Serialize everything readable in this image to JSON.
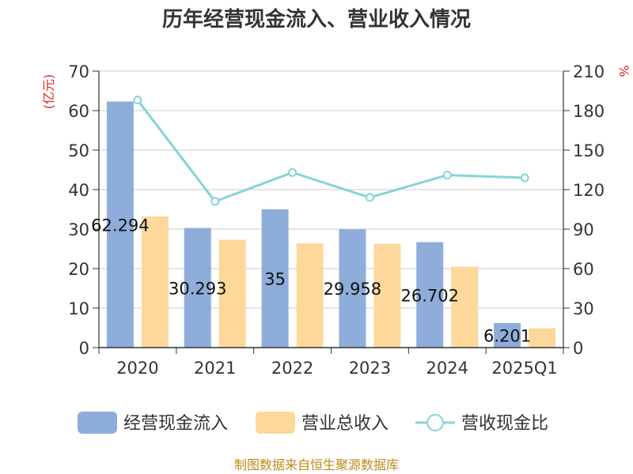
{
  "chart_data": {
    "type": "bar",
    "title": "历年经营现金流入、营业收入情况",
    "categories": [
      "2020",
      "2021",
      "2022",
      "2023",
      "2024",
      "2025Q1"
    ],
    "left_axis": {
      "unit": "(亿元)",
      "min": 0,
      "max": 70,
      "ticks": [
        0,
        10,
        20,
        30,
        40,
        50,
        60,
        70
      ]
    },
    "right_axis": {
      "unit": "%",
      "min": 0,
      "max": 210,
      "ticks": [
        0,
        30,
        60,
        90,
        120,
        150,
        180,
        210
      ]
    },
    "grid": true,
    "legend_position": "bottom",
    "series": [
      {
        "name": "经营现金流入",
        "kind": "bar",
        "axis": "left",
        "color": "#8eadda",
        "values": [
          62.29,
          30.29,
          35.0,
          29.96,
          26.7,
          6.2
        ],
        "labels": [
          "62.294",
          "30.293",
          "35",
          "29.958",
          "26.702",
          "6.201"
        ]
      },
      {
        "name": "营业总收入",
        "kind": "bar",
        "axis": "left",
        "color": "#fdd89a",
        "values": [
          33.2,
          27.3,
          26.4,
          26.3,
          20.5,
          4.9
        ]
      },
      {
        "name": "营收现金比",
        "kind": "line",
        "axis": "right",
        "color": "#86d4d8",
        "values": [
          188,
          111,
          133,
          114,
          131,
          129
        ]
      }
    ]
  },
  "source_note": "制图数据来自恒生聚源数据库"
}
